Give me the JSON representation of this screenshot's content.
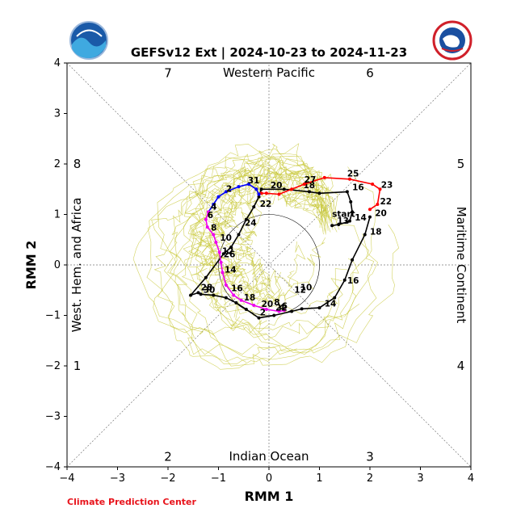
{
  "chart_data": {
    "type": "line",
    "title": "GEFSv12 Ext | 2024-10-23 to 2024-11-23",
    "xlabel": "RMM 1",
    "ylabel": "RMM 2",
    "xlim": [
      -4,
      4
    ],
    "ylim": [
      -4,
      4
    ],
    "xticks": [
      "−4",
      "−3",
      "−2",
      "−1",
      "0",
      "1",
      "2",
      "3",
      "4"
    ],
    "yticks": [
      "−4",
      "−3",
      "−2",
      "−1",
      "0",
      "1",
      "2",
      "3",
      "4"
    ],
    "grid": false,
    "regions": {
      "top": "Western Pacific",
      "bottom": "Indian Ocean",
      "left": "West. Hem. and Africa",
      "right": "Maritime Continent"
    },
    "phases": [
      {
        "label": "1",
        "x": -3.8,
        "y": -2.0
      },
      {
        "label": "2",
        "x": -2.0,
        "y": -3.8
      },
      {
        "label": "3",
        "x": 2.0,
        "y": -3.8
      },
      {
        "label": "4",
        "x": 3.8,
        "y": -2.0
      },
      {
        "label": "5",
        "x": 3.8,
        "y": 2.0
      },
      {
        "label": "6",
        "x": 2.0,
        "y": 3.8
      },
      {
        "label": "7",
        "x": -2.0,
        "y": 3.8
      },
      {
        "label": "8",
        "x": -3.8,
        "y": 2.0
      }
    ],
    "colors": {
      "observed": "#000000",
      "red": "#ff0000",
      "blue": "#0000ff",
      "magenta": "#ee00ee",
      "ensemble": "#c8c83a",
      "credit": "#e8141c"
    },
    "series": [
      {
        "color": "#000000",
        "x": [
          1.25,
          1.38,
          1.55,
          1.6,
          1.65,
          1.62,
          1.55,
          1.0,
          0.8,
          0.3,
          -0.15,
          -0.2,
          -0.3,
          -0.45,
          -0.6,
          -0.75,
          -0.9,
          -1.25,
          -1.55,
          -1.4,
          -1.35,
          -1.1,
          -0.85,
          -0.65,
          -0.45,
          -0.2,
          0.1,
          0.45,
          0.65,
          1.0,
          1.3,
          1.5,
          1.65,
          1.9,
          2.0
        ],
        "y": [
          0.78,
          0.8,
          0.85,
          0.87,
          1.05,
          1.25,
          1.45,
          1.42,
          1.45,
          1.5,
          1.5,
          1.35,
          1.15,
          0.9,
          0.6,
          0.35,
          0.22,
          -0.25,
          -0.6,
          -0.55,
          -0.58,
          -0.6,
          -0.65,
          -0.75,
          -0.88,
          -1.05,
          -1.0,
          -0.92,
          -0.87,
          -0.85,
          -0.65,
          -0.3,
          0.1,
          0.6,
          0.95
        ],
        "labels": [
          {
            "text": "start",
            "x": 1.25,
            "y": 0.95
          },
          {
            "text": "13",
            "x": 1.35,
            "y": 0.82
          },
          {
            "text": "14",
            "x": 1.7,
            "y": 0.88
          },
          {
            "text": "16",
            "x": 1.65,
            "y": 1.48
          },
          {
            "text": "18",
            "x": 0.68,
            "y": 1.52
          },
          {
            "text": "20",
            "x": 0.03,
            "y": 1.52
          },
          {
            "text": "22",
            "x": -0.18,
            "y": 1.15
          },
          {
            "text": "24",
            "x": -0.48,
            "y": 0.78
          },
          {
            "text": "26",
            "x": -0.9,
            "y": 0.15
          },
          {
            "text": "28",
            "x": -1.35,
            "y": -0.5
          },
          {
            "text": "30",
            "x": -1.3,
            "y": -0.55
          },
          {
            "text": "2",
            "x": -0.18,
            "y": -1.0
          },
          {
            "text": "4",
            "x": 0.2,
            "y": -0.9
          },
          {
            "text": "6",
            "x": 0.25,
            "y": -0.87
          },
          {
            "text": "8",
            "x": 0.1,
            "y": -0.8
          },
          {
            "text": "10",
            "x": 0.62,
            "y": -0.5
          },
          {
            "text": "12",
            "x": 0.5,
            "y": -0.55
          },
          {
            "text": "14",
            "x": 1.1,
            "y": -0.82
          },
          {
            "text": "16",
            "x": 1.55,
            "y": -0.37
          },
          {
            "text": "18",
            "x": 2.0,
            "y": 0.6
          },
          {
            "text": "20",
            "x": 2.1,
            "y": 0.97
          },
          {
            "text": "22",
            "x": 2.2,
            "y": 1.2
          }
        ]
      },
      {
        "color": "#ff0000",
        "x": [
          2.0,
          2.15,
          2.2,
          2.05,
          1.6,
          1.1,
          0.7,
          0.45,
          0.2,
          -0.05,
          -0.15,
          -0.2
        ],
        "y": [
          1.1,
          1.2,
          1.5,
          1.6,
          1.7,
          1.73,
          1.6,
          1.5,
          1.4,
          1.42,
          1.42,
          1.4
        ],
        "labels": [
          {
            "text": "23",
            "x": 2.22,
            "y": 1.53
          },
          {
            "text": "25",
            "x": 1.55,
            "y": 1.75
          },
          {
            "text": "27",
            "x": 0.7,
            "y": 1.63
          }
        ]
      },
      {
        "color": "#0000ff",
        "x": [
          -0.2,
          -0.25,
          -0.4,
          -0.6,
          -0.85,
          -1.0,
          -1.1,
          -1.2
        ],
        "y": [
          1.4,
          1.5,
          1.6,
          1.55,
          1.45,
          1.35,
          1.2,
          1.05
        ],
        "labels": [
          {
            "text": "31",
            "x": -0.42,
            "y": 1.62
          },
          {
            "text": "2",
            "x": -0.85,
            "y": 1.45
          },
          {
            "text": "4",
            "x": -1.15,
            "y": 1.1
          }
        ]
      },
      {
        "color": "#ee00ee",
        "x": [
          -1.2,
          -1.25,
          -1.22,
          -1.1,
          -1.05,
          -0.98,
          -0.95,
          -0.92,
          -0.85,
          -0.7,
          -0.55,
          -0.3,
          -0.05,
          0.2,
          0.3
        ],
        "y": [
          1.05,
          0.9,
          0.75,
          0.6,
          0.45,
          0.25,
          0.05,
          -0.15,
          -0.4,
          -0.6,
          -0.7,
          -0.8,
          -0.88,
          -0.92,
          -0.9
        ],
        "labels": [
          {
            "text": "6",
            "x": -1.22,
            "y": 0.93
          },
          {
            "text": "8",
            "x": -1.15,
            "y": 0.68
          },
          {
            "text": "10",
            "x": -0.97,
            "y": 0.48
          },
          {
            "text": "12",
            "x": -0.93,
            "y": 0.22
          },
          {
            "text": "14",
            "x": -0.88,
            "y": -0.15
          },
          {
            "text": "16",
            "x": -0.75,
            "y": -0.52
          },
          {
            "text": "18",
            "x": -0.5,
            "y": -0.7
          },
          {
            "text": "20",
            "x": -0.15,
            "y": -0.83
          },
          {
            "text": "22",
            "x": 0.13,
            "y": -0.9
          }
        ]
      }
    ]
  },
  "credit": "Climate Prediction Center"
}
